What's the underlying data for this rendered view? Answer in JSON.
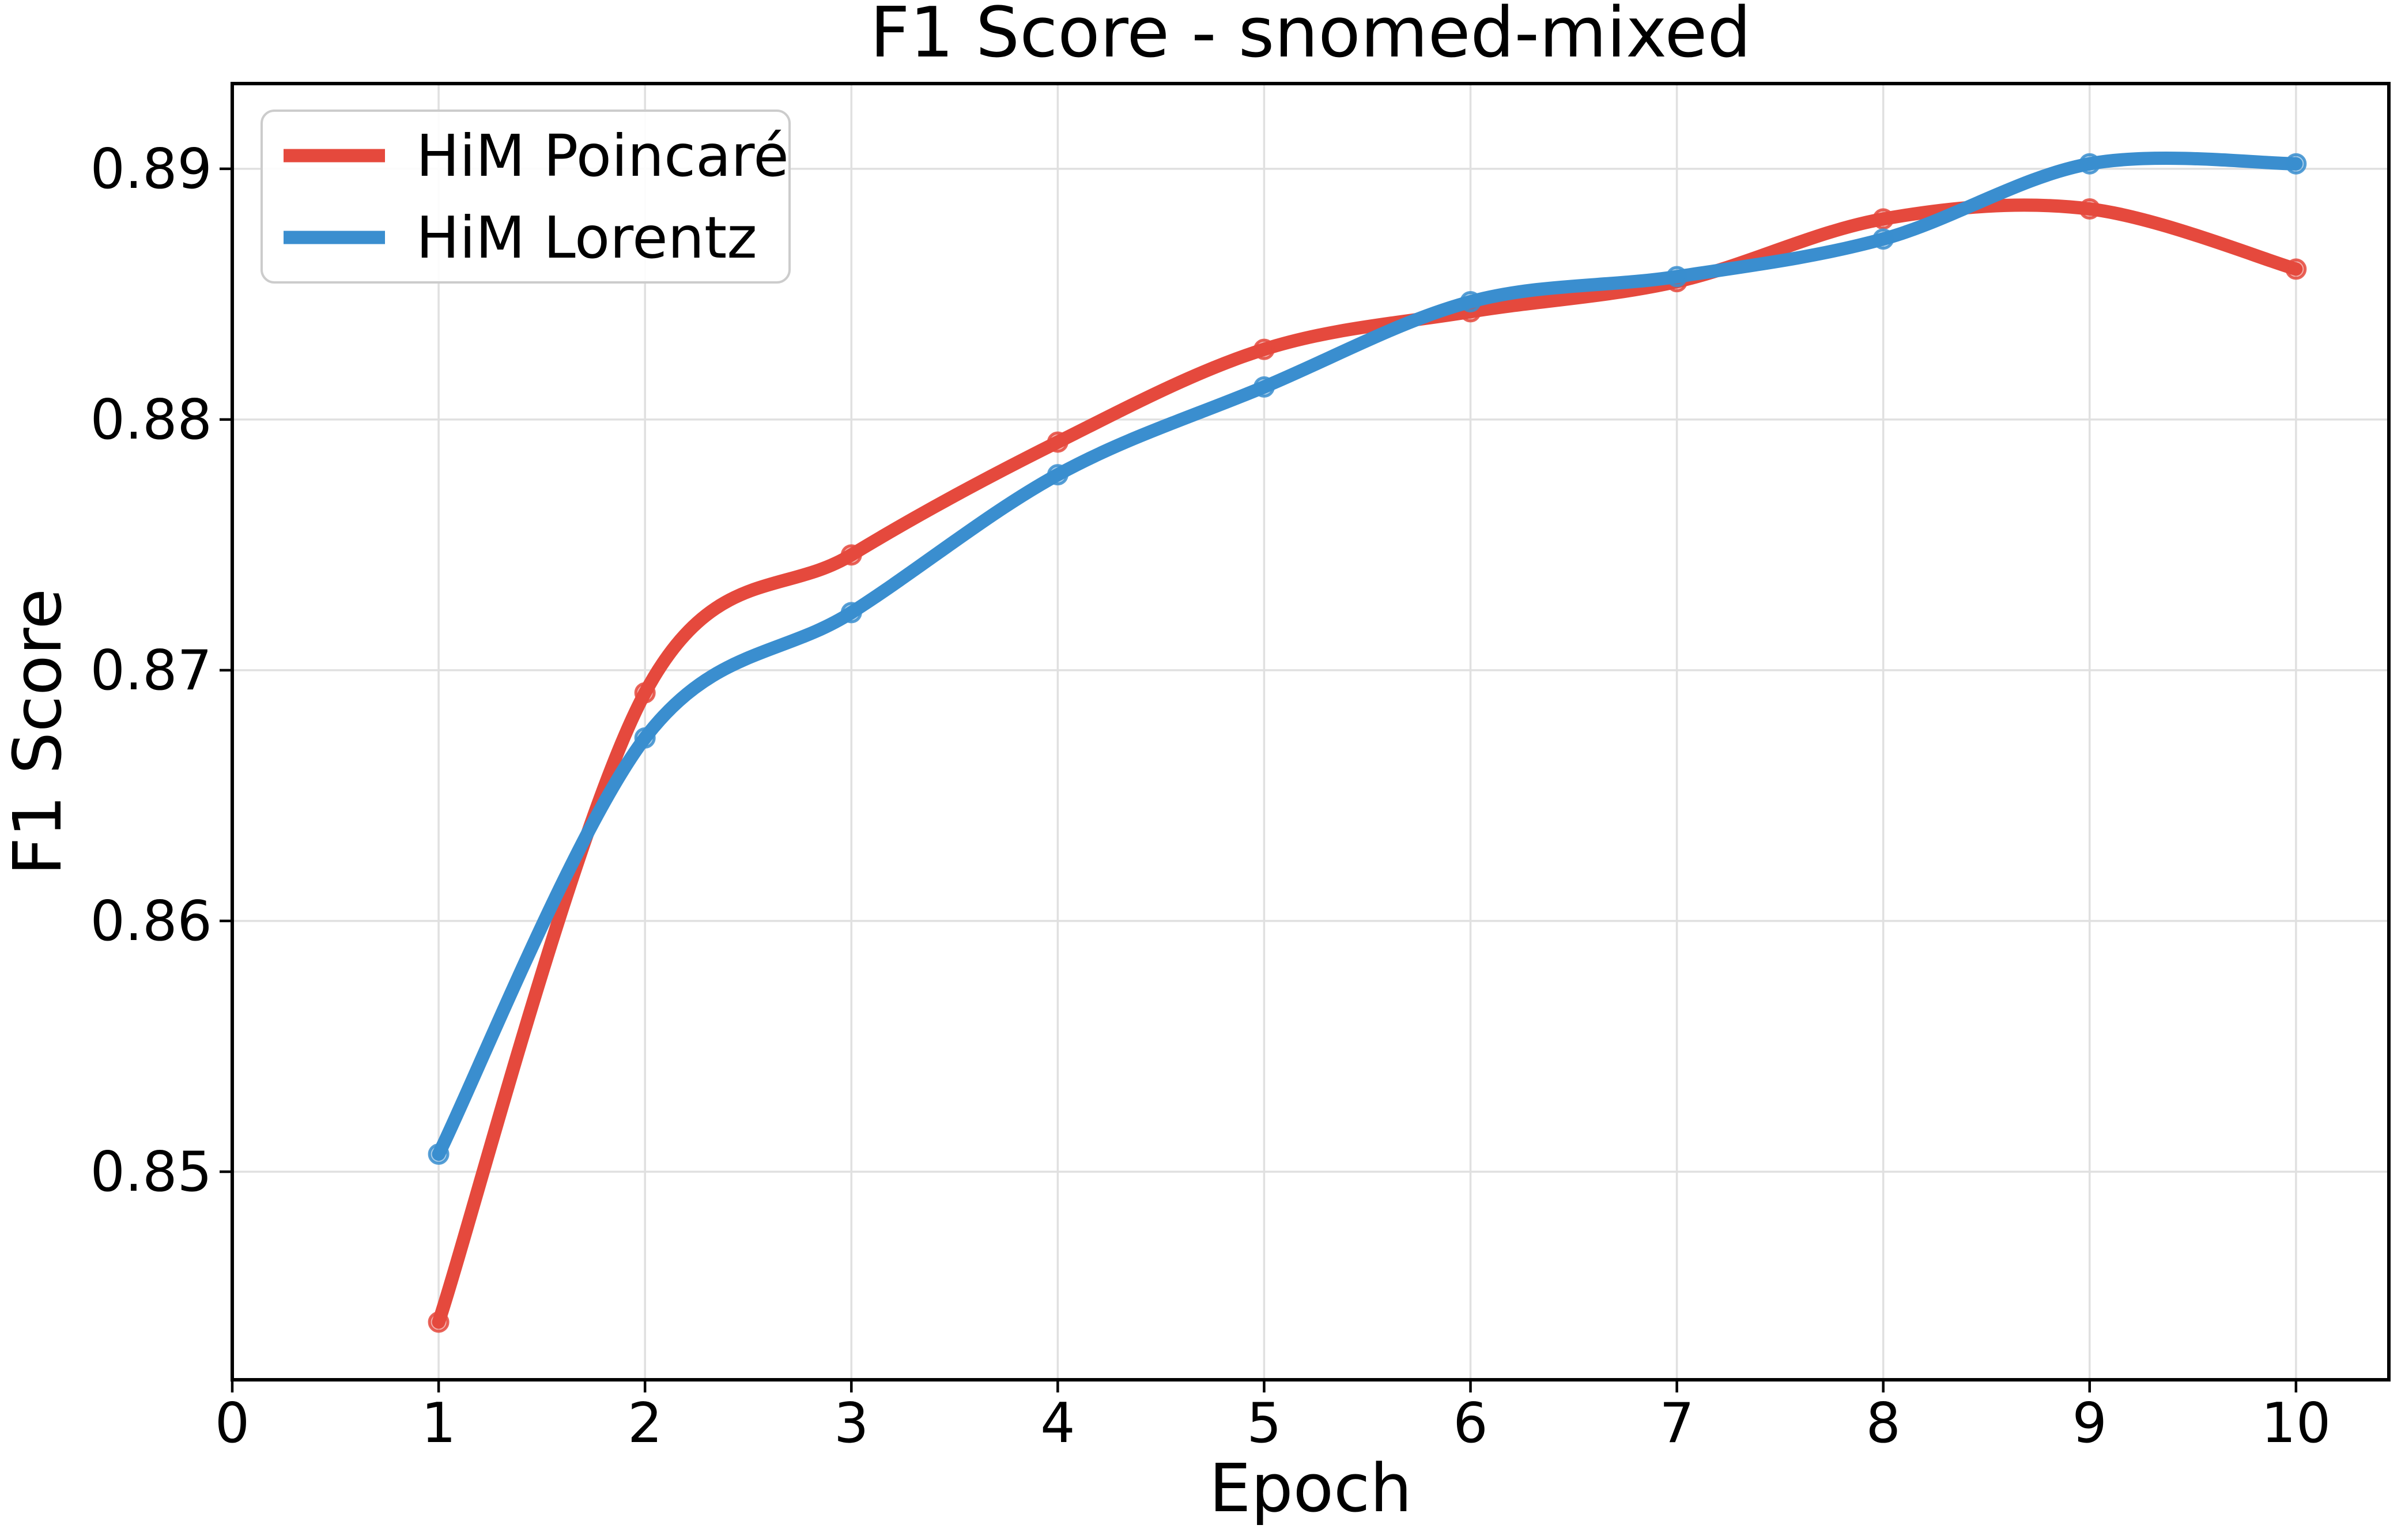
{
  "chart_data": {
    "type": "line",
    "title": "F1 Score - snomed-mixed",
    "xlabel": "Epoch",
    "ylabel": "F1 Score",
    "x": [
      1,
      2,
      3,
      4,
      5,
      6,
      7,
      8,
      9,
      10
    ],
    "series": [
      {
        "name": "HiM Poincaré",
        "color": "#e5493d",
        "values": [
          0.844,
          0.8691,
          0.8746,
          0.8791,
          0.8828,
          0.8843,
          0.8855,
          0.888,
          0.8884,
          0.886
        ]
      },
      {
        "name": "HiM Lorentz",
        "color": "#3a8ecf",
        "values": [
          0.8507,
          0.8673,
          0.8723,
          0.8778,
          0.8813,
          0.8847,
          0.8857,
          0.8872,
          0.8902,
          0.8902
        ]
      }
    ],
    "xlim": [
      0,
      10.45
    ],
    "ylim": [
      0.8417,
      0.8934
    ],
    "xticks": [
      0,
      1,
      2,
      3,
      4,
      5,
      6,
      7,
      8,
      9,
      10
    ],
    "xtick_labels": [
      "0",
      "1",
      "2",
      "3",
      "4",
      "5",
      "6",
      "7",
      "8",
      "9",
      "10"
    ],
    "yticks": [
      0.85,
      0.86,
      0.87,
      0.88,
      0.89
    ],
    "ytick_labels": [
      "0.85",
      "0.86",
      "0.87",
      "0.88",
      "0.89"
    ],
    "grid": true,
    "legend_position": "upper-left",
    "line_style": "smooth-spline",
    "marker": "circle-semi-transparent"
  },
  "colors": {
    "background": "#ffffff",
    "grid": "#e0e0e0",
    "spine": "#000000",
    "text": "#000000",
    "legend_border": "#cccccc"
  }
}
